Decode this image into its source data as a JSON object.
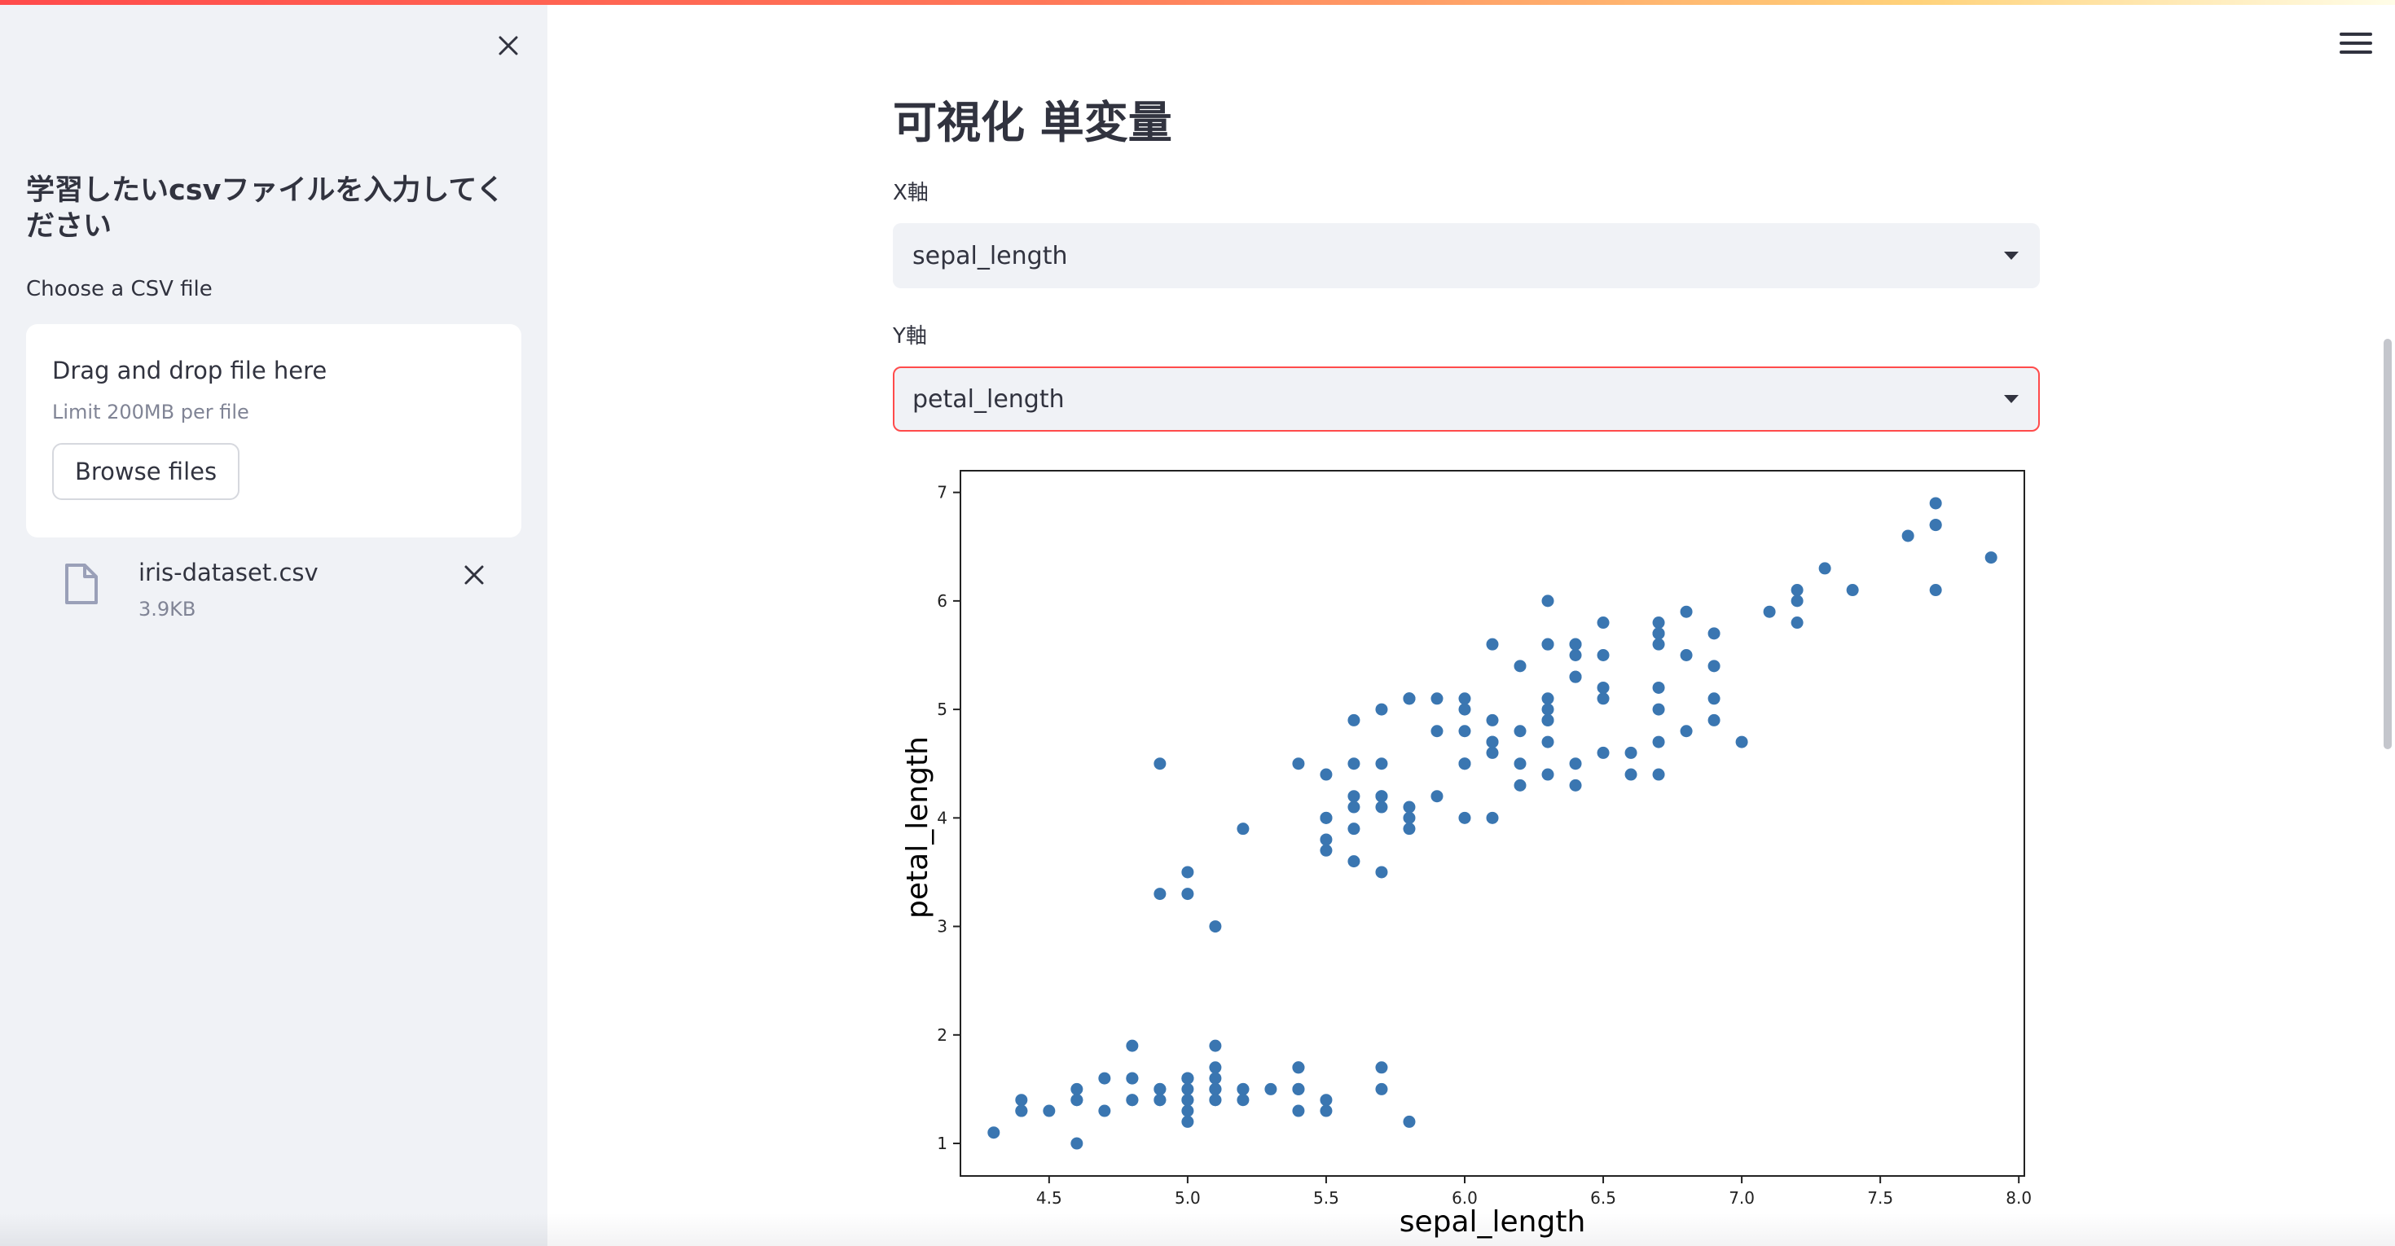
{
  "sidebar": {
    "header": "学習したいcsvファイルを入力してください",
    "uploader_label": "Choose a CSV file",
    "dropzone_title": "Drag and drop file here",
    "dropzone_limit": "Limit 200MB per file",
    "browse_button": "Browse files",
    "file": {
      "name": "iris-dataset.csv",
      "size": "3.9KB"
    }
  },
  "main": {
    "title": "可視化 単変量",
    "x_select": {
      "label": "X軸",
      "value": "sepal_length"
    },
    "y_select": {
      "label": "Y軸",
      "value": "petal_length"
    }
  },
  "colors": {
    "accent": "#ff4b4b",
    "point": "#3a76b1",
    "sidebar_bg": "#f0f2f6"
  },
  "icons": [
    "close-icon",
    "file-icon",
    "remove-file-icon",
    "hamburger-menu-icon",
    "chevron-down-icon"
  ],
  "chart_data": {
    "type": "scatter",
    "xlabel": "sepal_length",
    "ylabel": "petal_length",
    "xlim": [
      4.18,
      8.02
    ],
    "ylim": [
      0.7,
      7.2
    ],
    "x_ticks": [
      "4.5",
      "5.0",
      "5.5",
      "6.0",
      "6.5",
      "7.0",
      "7.5",
      "8.0"
    ],
    "y_ticks": [
      "1",
      "2",
      "3",
      "4",
      "5",
      "6",
      "7"
    ],
    "grid": false,
    "points": [
      [
        5.1,
        1.4
      ],
      [
        4.9,
        1.4
      ],
      [
        4.7,
        1.3
      ],
      [
        4.6,
        1.5
      ],
      [
        5.0,
        1.4
      ],
      [
        5.4,
        1.7
      ],
      [
        4.6,
        1.4
      ],
      [
        5.0,
        1.5
      ],
      [
        4.4,
        1.4
      ],
      [
        4.9,
        1.5
      ],
      [
        5.4,
        1.5
      ],
      [
        4.8,
        1.6
      ],
      [
        4.8,
        1.4
      ],
      [
        4.3,
        1.1
      ],
      [
        5.8,
        1.2
      ],
      [
        5.7,
        1.5
      ],
      [
        5.4,
        1.3
      ],
      [
        5.1,
        1.4
      ],
      [
        5.7,
        1.7
      ],
      [
        5.1,
        1.5
      ],
      [
        5.4,
        1.7
      ],
      [
        5.1,
        1.5
      ],
      [
        4.6,
        1.0
      ],
      [
        5.1,
        1.7
      ],
      [
        4.8,
        1.9
      ],
      [
        5.0,
        1.6
      ],
      [
        5.0,
        1.6
      ],
      [
        5.2,
        1.5
      ],
      [
        5.2,
        1.4
      ],
      [
        4.7,
        1.6
      ],
      [
        4.8,
        1.6
      ],
      [
        5.4,
        1.5
      ],
      [
        5.2,
        1.5
      ],
      [
        5.5,
        1.4
      ],
      [
        4.9,
        1.5
      ],
      [
        5.0,
        1.2
      ],
      [
        5.5,
        1.3
      ],
      [
        4.9,
        1.4
      ],
      [
        4.4,
        1.3
      ],
      [
        5.1,
        1.5
      ],
      [
        5.0,
        1.3
      ],
      [
        4.5,
        1.3
      ],
      [
        4.4,
        1.3
      ],
      [
        5.0,
        1.6
      ],
      [
        5.1,
        1.9
      ],
      [
        4.8,
        1.4
      ],
      [
        5.1,
        1.6
      ],
      [
        4.6,
        1.4
      ],
      [
        5.3,
        1.5
      ],
      [
        5.0,
        1.4
      ],
      [
        7.0,
        4.7
      ],
      [
        6.4,
        4.5
      ],
      [
        6.9,
        4.9
      ],
      [
        5.5,
        4.0
      ],
      [
        6.5,
        4.6
      ],
      [
        5.7,
        4.5
      ],
      [
        6.3,
        4.7
      ],
      [
        4.9,
        3.3
      ],
      [
        6.6,
        4.6
      ],
      [
        5.2,
        3.9
      ],
      [
        5.0,
        3.5
      ],
      [
        5.9,
        4.2
      ],
      [
        6.0,
        4.0
      ],
      [
        6.1,
        4.7
      ],
      [
        5.6,
        3.6
      ],
      [
        6.7,
        4.4
      ],
      [
        5.6,
        4.5
      ],
      [
        5.8,
        4.1
      ],
      [
        6.2,
        4.5
      ],
      [
        5.6,
        3.9
      ],
      [
        5.9,
        4.8
      ],
      [
        6.1,
        4.0
      ],
      [
        6.3,
        4.9
      ],
      [
        6.1,
        4.7
      ],
      [
        6.4,
        4.3
      ],
      [
        6.6,
        4.4
      ],
      [
        6.8,
        4.8
      ],
      [
        6.7,
        5.0
      ],
      [
        6.0,
        4.5
      ],
      [
        5.7,
        3.5
      ],
      [
        5.5,
        3.8
      ],
      [
        5.5,
        3.7
      ],
      [
        5.8,
        3.9
      ],
      [
        6.0,
        5.1
      ],
      [
        5.4,
        4.5
      ],
      [
        6.0,
        4.5
      ],
      [
        6.7,
        4.7
      ],
      [
        6.3,
        4.4
      ],
      [
        5.6,
        4.1
      ],
      [
        5.5,
        4.0
      ],
      [
        5.5,
        4.4
      ],
      [
        6.1,
        4.6
      ],
      [
        5.8,
        4.0
      ],
      [
        5.0,
        3.3
      ],
      [
        5.6,
        4.2
      ],
      [
        5.7,
        4.2
      ],
      [
        5.7,
        4.2
      ],
      [
        6.2,
        4.3
      ],
      [
        5.1,
        3.0
      ],
      [
        5.7,
        4.1
      ],
      [
        6.3,
        6.0
      ],
      [
        5.8,
        5.1
      ],
      [
        7.1,
        5.9
      ],
      [
        6.3,
        5.6
      ],
      [
        6.5,
        5.8
      ],
      [
        7.6,
        6.6
      ],
      [
        4.9,
        4.5
      ],
      [
        7.3,
        6.3
      ],
      [
        6.7,
        5.8
      ],
      [
        7.2,
        6.1
      ],
      [
        6.5,
        5.1
      ],
      [
        6.4,
        5.3
      ],
      [
        6.8,
        5.5
      ],
      [
        5.7,
        5.0
      ],
      [
        5.8,
        5.1
      ],
      [
        6.4,
        5.3
      ],
      [
        6.5,
        5.5
      ],
      [
        7.7,
        6.7
      ],
      [
        7.7,
        6.9
      ],
      [
        6.0,
        5.0
      ],
      [
        6.9,
        5.7
      ],
      [
        5.6,
        4.9
      ],
      [
        7.7,
        6.7
      ],
      [
        6.3,
        4.9
      ],
      [
        6.7,
        5.7
      ],
      [
        7.2,
        6.0
      ],
      [
        6.2,
        4.8
      ],
      [
        6.1,
        4.9
      ],
      [
        6.4,
        5.6
      ],
      [
        7.2,
        5.8
      ],
      [
        7.4,
        6.1
      ],
      [
        7.9,
        6.4
      ],
      [
        6.4,
        5.6
      ],
      [
        6.3,
        5.1
      ],
      [
        6.1,
        5.6
      ],
      [
        7.7,
        6.1
      ],
      [
        6.3,
        5.6
      ],
      [
        6.4,
        5.5
      ],
      [
        6.0,
        4.8
      ],
      [
        6.9,
        5.4
      ],
      [
        6.7,
        5.6
      ],
      [
        6.9,
        5.1
      ],
      [
        5.8,
        5.1
      ],
      [
        6.8,
        5.9
      ],
      [
        6.7,
        5.7
      ],
      [
        6.7,
        5.2
      ],
      [
        6.3,
        5.0
      ],
      [
        6.5,
        5.2
      ],
      [
        6.2,
        5.4
      ],
      [
        5.9,
        5.1
      ]
    ]
  }
}
